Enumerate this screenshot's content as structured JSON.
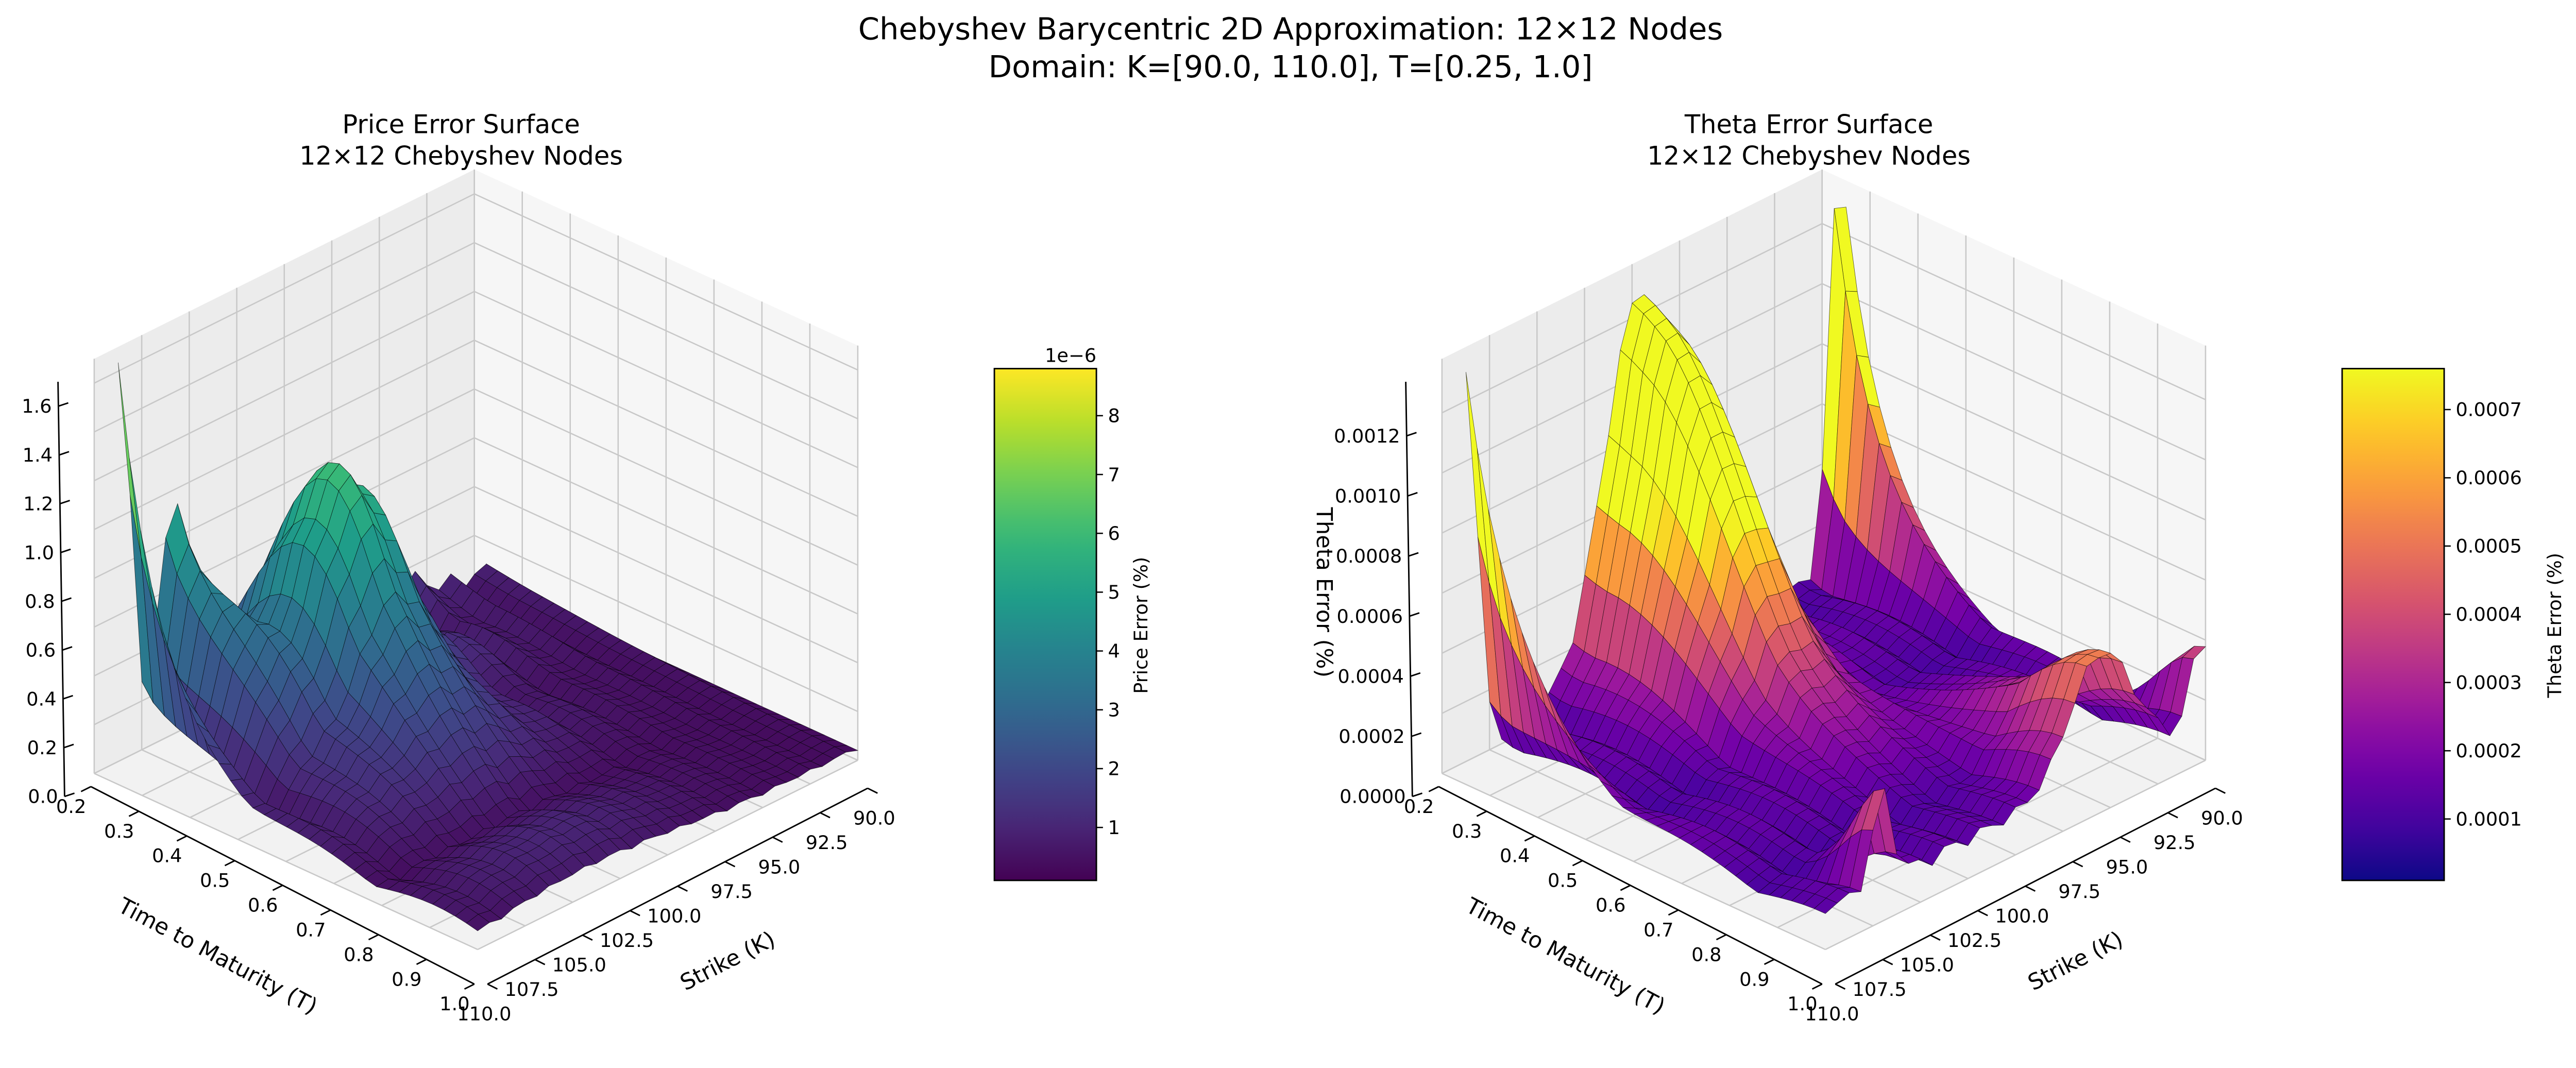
{
  "figure": {
    "title_line1": "Chebyshev Barycentric 2D Approximation: 12×12 Nodes",
    "title_line2": "Domain: K=[90.0, 110.0], T=[0.25, 1.0]"
  },
  "chart_data": [
    {
      "type": "surface",
      "title_line1": "Price Error Surface",
      "title_line2": "12×12 Chebyshev Nodes",
      "xlabel": "Time to Maturity (T)",
      "ylabel": "Strike (K)",
      "zlabel": "",
      "x_ticks": [
        "0.2",
        "0.3",
        "0.4",
        "0.5",
        "0.6",
        "0.7",
        "0.8",
        "0.9",
        "1.0"
      ],
      "y_ticks": [
        "90.0",
        "92.5",
        "95.0",
        "97.5",
        "100.0",
        "102.5",
        "105.0",
        "107.5",
        "110.0"
      ],
      "z_ticks": [
        "0.0",
        "0.2",
        "0.4",
        "0.6",
        "0.8",
        "1.0",
        "1.2",
        "1.4",
        "1.6"
      ],
      "xlim": [
        0.2,
        1.0
      ],
      "ylim": [
        90.0,
        110.0
      ],
      "zlim": [
        0.0,
        1.7
      ],
      "z_max_approx": 1.6,
      "colormap": "viridis",
      "colorbar": {
        "label": "Price Error (%)",
        "offset_text": "1e−6",
        "ticks": [
          "1",
          "2",
          "3",
          "4",
          "5",
          "6",
          "7",
          "8"
        ],
        "range": [
          0.1,
          8.8
        ]
      },
      "grid": true
    },
    {
      "type": "surface",
      "title_line1": "Theta Error Surface",
      "title_line2": "12×12 Chebyshev Nodes",
      "xlabel": "Time to Maturity (T)",
      "ylabel": "Strike (K)",
      "zlabel": "Theta Error (%)",
      "x_ticks": [
        "0.2",
        "0.3",
        "0.4",
        "0.5",
        "0.6",
        "0.7",
        "0.8",
        "0.9",
        "1.0"
      ],
      "y_ticks": [
        "90.0",
        "92.5",
        "95.0",
        "97.5",
        "100.0",
        "102.5",
        "105.0",
        "107.5",
        "110.0"
      ],
      "z_ticks": [
        "0.0000",
        "0.0002",
        "0.0004",
        "0.0006",
        "0.0008",
        "0.0010",
        "0.0012"
      ],
      "xlim": [
        0.2,
        1.0
      ],
      "ylim": [
        90.0,
        110.0
      ],
      "zlim": [
        0.0,
        0.00138
      ],
      "z_max_approx": 0.00135,
      "colormap": "plasma",
      "colorbar": {
        "label": "Theta Error (%)",
        "offset_text": "",
        "ticks": [
          "0.0001",
          "0.0002",
          "0.0003",
          "0.0004",
          "0.0005",
          "0.0006",
          "0.0007"
        ],
        "range": [
          1e-05,
          0.00076
        ]
      },
      "grid": true
    }
  ]
}
